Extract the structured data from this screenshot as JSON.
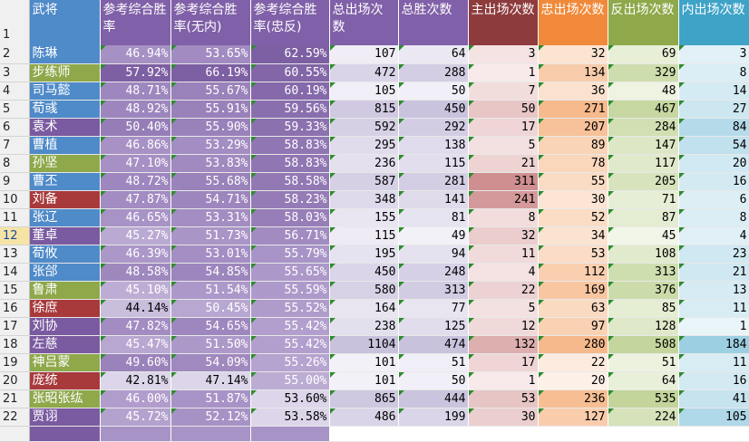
{
  "header": {
    "row_number": "1",
    "columns": [
      "武将",
      "参考综合胜率",
      "参考综合胜率(无内)",
      "参考综合胜率(忠反)",
      "总出场次数",
      "总胜次数",
      "主出场次数",
      "忠出场次数",
      "反出场次数",
      "内出场次数"
    ]
  },
  "selected_row_number": "12",
  "rows": [
    {
      "n": "2",
      "name": "陈琳",
      "p1": "46.94%",
      "p2": "53.65%",
      "p3": "62.59%",
      "total": "107",
      "wins": "64",
      "lord": "3",
      "loyal": "32",
      "rebel": "69",
      "spy": "3"
    },
    {
      "n": "3",
      "name": "步练师",
      "p1": "57.92%",
      "p2": "66.19%",
      "p3": "60.55%",
      "total": "472",
      "wins": "288",
      "lord": "1",
      "loyal": "134",
      "rebel": "329",
      "spy": "8"
    },
    {
      "n": "4",
      "name": "司马懿",
      "p1": "48.71%",
      "p2": "55.67%",
      "p3": "60.19%",
      "total": "105",
      "wins": "50",
      "lord": "7",
      "loyal": "36",
      "rebel": "48",
      "spy": "14"
    },
    {
      "n": "5",
      "name": "荀彧",
      "p1": "48.92%",
      "p2": "55.91%",
      "p3": "59.56%",
      "total": "815",
      "wins": "450",
      "lord": "50",
      "loyal": "271",
      "rebel": "467",
      "spy": "27"
    },
    {
      "n": "6",
      "name": "袁术",
      "p1": "50.40%",
      "p2": "55.90%",
      "p3": "59.33%",
      "total": "592",
      "wins": "292",
      "lord": "17",
      "loyal": "207",
      "rebel": "284",
      "spy": "84"
    },
    {
      "n": "7",
      "name": "曹植",
      "p1": "46.86%",
      "p2": "53.29%",
      "p3": "58.83%",
      "total": "295",
      "wins": "138",
      "lord": "5",
      "loyal": "89",
      "rebel": "147",
      "spy": "54"
    },
    {
      "n": "8",
      "name": "孙坚",
      "p1": "47.10%",
      "p2": "53.83%",
      "p3": "58.83%",
      "total": "236",
      "wins": "115",
      "lord": "21",
      "loyal": "78",
      "rebel": "117",
      "spy": "20"
    },
    {
      "n": "9",
      "name": "曹丕",
      "p1": "48.72%",
      "p2": "55.68%",
      "p3": "58.58%",
      "total": "587",
      "wins": "281",
      "lord": "311",
      "loyal": "55",
      "rebel": "205",
      "spy": "16"
    },
    {
      "n": "10",
      "name": "刘备",
      "p1": "47.87%",
      "p2": "54.71%",
      "p3": "58.23%",
      "total": "348",
      "wins": "141",
      "lord": "241",
      "loyal": "30",
      "rebel": "71",
      "spy": "6"
    },
    {
      "n": "11",
      "name": "张辽",
      "p1": "46.65%",
      "p2": "53.31%",
      "p3": "58.03%",
      "total": "155",
      "wins": "81",
      "lord": "8",
      "loyal": "52",
      "rebel": "87",
      "spy": "8"
    },
    {
      "n": "12",
      "name": "董卓",
      "p1": "45.27%",
      "p2": "51.73%",
      "p3": "56.71%",
      "total": "115",
      "wins": "49",
      "lord": "32",
      "loyal": "34",
      "rebel": "45",
      "spy": "4"
    },
    {
      "n": "13",
      "name": "荀攸",
      "p1": "46.39%",
      "p2": "53.01%",
      "p3": "55.79%",
      "total": "195",
      "wins": "94",
      "lord": "11",
      "loyal": "53",
      "rebel": "108",
      "spy": "23"
    },
    {
      "n": "14",
      "name": "张郃",
      "p1": "48.58%",
      "p2": "54.85%",
      "p3": "55.65%",
      "total": "450",
      "wins": "248",
      "lord": "4",
      "loyal": "112",
      "rebel": "313",
      "spy": "21"
    },
    {
      "n": "15",
      "name": "鲁肃",
      "p1": "45.10%",
      "p2": "51.54%",
      "p3": "55.59%",
      "total": "580",
      "wins": "313",
      "lord": "22",
      "loyal": "169",
      "rebel": "376",
      "spy": "13"
    },
    {
      "n": "16",
      "name": "徐庶",
      "p1": "44.14%",
      "p2": "50.45%",
      "p3": "55.52%",
      "total": "164",
      "wins": "77",
      "lord": "5",
      "loyal": "63",
      "rebel": "85",
      "spy": "11"
    },
    {
      "n": "17",
      "name": "刘协",
      "p1": "47.82%",
      "p2": "54.65%",
      "p3": "55.42%",
      "total": "238",
      "wins": "125",
      "lord": "12",
      "loyal": "97",
      "rebel": "128",
      "spy": "1"
    },
    {
      "n": "18",
      "name": "左慈",
      "p1": "45.47%",
      "p2": "51.50%",
      "p3": "55.42%",
      "total": "1104",
      "wins": "474",
      "lord": "132",
      "loyal": "280",
      "rebel": "508",
      "spy": "184"
    },
    {
      "n": "19",
      "name": "神吕蒙",
      "p1": "49.60%",
      "p2": "54.09%",
      "p3": "55.26%",
      "total": "101",
      "wins": "51",
      "lord": "17",
      "loyal": "22",
      "rebel": "51",
      "spy": "11"
    },
    {
      "n": "20",
      "name": "庞统",
      "p1": "42.81%",
      "p2": "47.14%",
      "p3": "55.00%",
      "total": "101",
      "wins": "50",
      "lord": "1",
      "loyal": "20",
      "rebel": "64",
      "spy": "16"
    },
    {
      "n": "21",
      "name": "张昭张纮",
      "p1": "46.00%",
      "p2": "51.87%",
      "p3": "53.60%",
      "total": "865",
      "wins": "444",
      "lord": "53",
      "loyal": "236",
      "rebel": "535",
      "spy": "41"
    },
    {
      "n": "22",
      "name": "贾诩",
      "p1": "45.72%",
      "p2": "52.12%",
      "p3": "53.58%",
      "total": "486",
      "wins": "199",
      "lord": "30",
      "loyal": "127",
      "rebel": "224",
      "spy": "105"
    }
  ],
  "name_colors": [
    "#4f8ac9",
    "#8ea84a",
    "#4f8ac9",
    "#4f8ac9",
    "#7a5aa0",
    "#4f8ac9",
    "#8ea84a",
    "#4f8ac9",
    "#a83a3c",
    "#4f8ac9",
    "#7a5aa0",
    "#4f8ac9",
    "#4f8ac9",
    "#8ea84a",
    "#a83a3c",
    "#7a5aa0",
    "#7a5aa0",
    "#8ea84a",
    "#a83a3c",
    "#8ea84a",
    "#7a5aa0"
  ],
  "heat": {
    "pct_dark": "#7d5fa3",
    "pct_mid": "#a893c6",
    "pct_light": "#ddd6ea",
    "total_dark": "#c9c2dd",
    "total_light": "#f3f1f8",
    "wins_dark": "#c9c2dd",
    "wins_light": "#f3f1f8",
    "lord_dark": "#cf8f90",
    "lord_light": "#f8eaea",
    "loyal_dark": "#f6b98b",
    "loyal_light": "#fdf0e6",
    "rebel_dark": "#c3d59b",
    "rebel_light": "#f2f6e8",
    "spy_dark": "#9ccfe2",
    "spy_light": "#eaf5f9"
  }
}
